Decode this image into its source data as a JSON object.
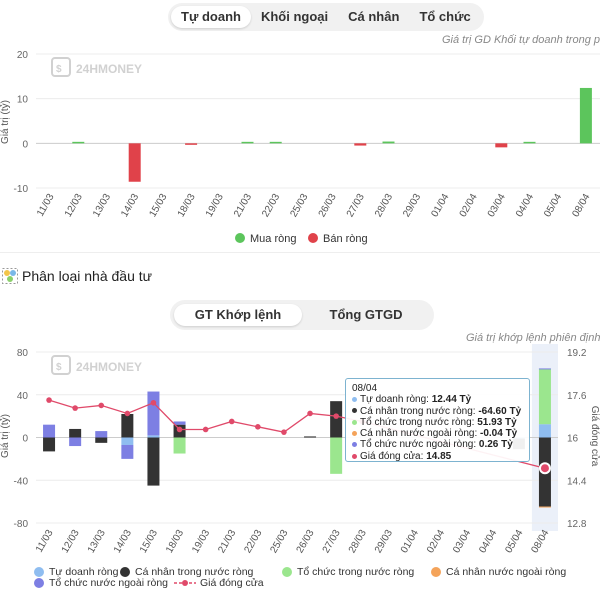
{
  "tabs1": [
    "Tự doanh",
    "Khối ngoại",
    "Cá nhân",
    "Tổ chức"
  ],
  "tabs1_active": 0,
  "chart1_subtitle": "Giá trị GD Khối tự doanh trong phiên",
  "watermark": "24HMONEY",
  "section_title": "Phân loại nhà đầu tư",
  "tabs2": [
    "GT Khớp lệnh",
    "Tổng GTGD"
  ],
  "tabs2_active": 0,
  "chart2_subtitle": "Giá trị khớp lệnh phiên định k",
  "tooltip": {
    "date": "08/04",
    "rows": [
      {
        "label": "Tự doanh ròng:",
        "value": "12.44 Tỷ",
        "color": "#8fbdf0"
      },
      {
        "label": "Cá nhân trong nước ròng:",
        "value": "-64.60 Tỷ",
        "color": "#333333"
      },
      {
        "label": "Tổ chức trong nước ròng:",
        "value": "51.93 Tỷ",
        "color": "#9be68e"
      },
      {
        "label": "Cá nhân nước ngoài ròng:",
        "value": "-0.04 Tỷ",
        "color": "#f4a35a"
      },
      {
        "label": "Tổ chức nước ngoài ròng:",
        "value": "0.26 Tỷ",
        "color": "#7d7fe3"
      },
      {
        "label": "Giá đóng cửa:",
        "value": "14.85",
        "color": "#e04a6a"
      }
    ]
  },
  "chart_data": [
    {
      "type": "bar",
      "categories": [
        "11/03",
        "12/03",
        "13/03",
        "14/03",
        "15/03",
        "18/03",
        "19/03",
        "21/03",
        "22/03",
        "25/03",
        "26/03",
        "27/03",
        "28/03",
        "29/03",
        "01/04",
        "02/04",
        "03/04",
        "04/04",
        "05/04",
        "08/04"
      ],
      "series": [
        {
          "name": "Mua ròng",
          "color": "#5cc55c",
          "values": [
            0,
            0.2,
            0,
            0,
            0,
            0,
            0,
            0.3,
            0.2,
            0,
            0,
            0,
            0.4,
            0,
            0,
            0,
            0,
            0.2,
            0,
            12.4
          ]
        },
        {
          "name": "Bán ròng",
          "color": "#e0424a",
          "values": [
            0,
            0,
            0,
            -8.6,
            0,
            -0.2,
            0,
            0,
            0,
            0,
            0,
            -0.5,
            0,
            0,
            0,
            0,
            -0.9,
            0,
            0,
            0
          ]
        }
      ],
      "ylabel": "Giá trị (tỷ)",
      "ylim": [
        -10,
        20
      ],
      "yticks": [
        20,
        10,
        0,
        -10
      ],
      "grid": true,
      "legend": "bottom"
    },
    {
      "type": "bar",
      "categories": [
        "11/03",
        "12/03",
        "13/03",
        "14/03",
        "15/03",
        "18/03",
        "19/03",
        "21/03",
        "22/03",
        "25/03",
        "26/03",
        "27/03",
        "28/03",
        "29/03",
        "01/04",
        "02/04",
        "03/04",
        "04/04",
        "05/04",
        "08/04"
      ],
      "stacked": true,
      "series": [
        {
          "name": "Tự doanh ròng",
          "color": "#8fbdf0",
          "values": [
            0,
            0,
            0,
            -7,
            2,
            0,
            0,
            0,
            0,
            0,
            0,
            0,
            0,
            0,
            0,
            0,
            0,
            0,
            -1,
            12.44
          ]
        },
        {
          "name": "Cá nhân trong nước ròng",
          "color": "#333333",
          "values": [
            -13,
            8,
            -5,
            22,
            -45,
            12,
            0,
            0,
            0,
            0,
            1,
            34,
            0,
            0,
            0,
            0,
            0,
            0,
            -10,
            -64.6
          ]
        },
        {
          "name": "Tổ chức trong nước ròng",
          "color": "#9be68e",
          "values": [
            0,
            0,
            0,
            0,
            0,
            -15,
            0,
            0,
            0,
            0,
            0,
            -34,
            0,
            0,
            0,
            0,
            0,
            0,
            0,
            51.93
          ]
        },
        {
          "name": "Cá nhân nước ngoài ròng",
          "color": "#f4a35a",
          "values": [
            0,
            0,
            0,
            0,
            0,
            0,
            0,
            0,
            0,
            0,
            0,
            0,
            0,
            0,
            0,
            0,
            0,
            0,
            0,
            -0.04
          ]
        },
        {
          "name": "Tổ chức nước ngoài ròng",
          "color": "#7d7fe3",
          "values": [
            12,
            -8,
            6,
            -13,
            41,
            3,
            0,
            0,
            0,
            0,
            0,
            0,
            0,
            0,
            0,
            0,
            0,
            0,
            0,
            0.26
          ]
        }
      ],
      "line": {
        "name": "Giá đóng cửa",
        "color": "#e04a6a",
        "values": [
          17.4,
          17.1,
          17.2,
          16.9,
          17.3,
          16.3,
          16.3,
          16.6,
          16.4,
          16.2,
          16.9,
          16.8,
          16.6,
          null,
          null,
          null,
          null,
          null,
          null,
          14.85
        ]
      },
      "ylabel": "Giá trị (tỷ)",
      "y2label": "Giá đóng cửa",
      "ylim": [
        -80,
        80
      ],
      "yticks": [
        80,
        40,
        0,
        -40,
        -80
      ],
      "y2lim": [
        12.8,
        19.2
      ],
      "y2ticks": [
        "19.2",
        "17.6",
        "16",
        "14.4",
        "12.8"
      ],
      "highlight": "08/04",
      "grid": true,
      "legend": "bottom"
    }
  ]
}
